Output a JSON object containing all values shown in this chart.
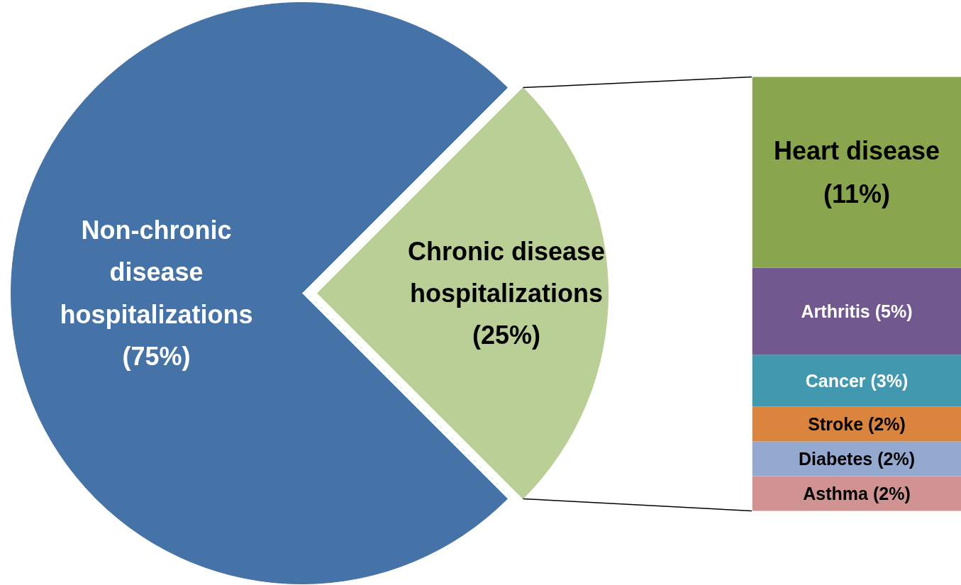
{
  "chart_data": [
    {
      "type": "pie",
      "categories": [
        "Non-chronic disease hospitalizations",
        "Chronic disease hospitalizations"
      ],
      "values": [
        75,
        25
      ],
      "colors": [
        "#4572a7",
        "#b9cf96"
      ],
      "value_labels": [
        "(75%)",
        "(25%)"
      ]
    },
    {
      "type": "bar",
      "stacked": true,
      "categories": [
        null
      ],
      "series": [
        {
          "name": "Asthma",
          "color": "#d19392",
          "values": [
            2
          ],
          "value_labels": [
            "(2%)"
          ]
        },
        {
          "name": "Diabetes",
          "color": "#94a9d0",
          "values": [
            2
          ],
          "value_labels": [
            "(2%)"
          ]
        },
        {
          "name": "Stroke",
          "color": "#db843d",
          "values": [
            2
          ],
          "value_labels": [
            "(2%)"
          ]
        },
        {
          "name": "Cancer",
          "color": "#4198af",
          "values": [
            3
          ],
          "value_labels": [
            "(3%)"
          ]
        },
        {
          "name": "Arthritis",
          "color": "#71588f",
          "values": [
            5
          ],
          "value_labels": [
            "(5%)"
          ]
        },
        {
          "name": "Heart disease",
          "color": "#89a54e",
          "values": [
            11
          ],
          "value_labels": [
            "(11%)"
          ]
        }
      ]
    }
  ]
}
